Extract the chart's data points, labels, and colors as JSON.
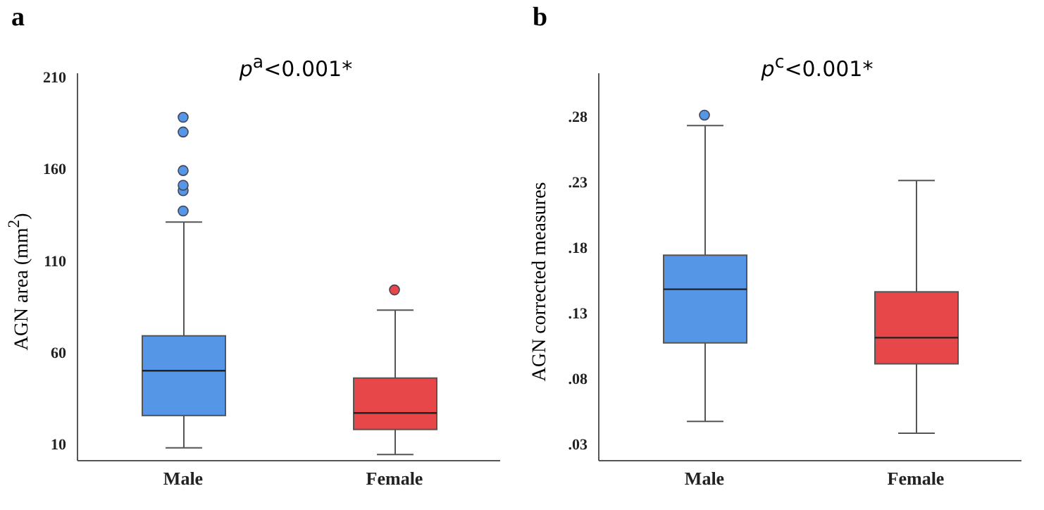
{
  "chart_data": [
    {
      "type": "box",
      "title": "p$^{a}$<0.001*",
      "ylabel": "AGN area (mm$^{2}$)",
      "annotations": [
        "a"
      ],
      "categories": [
        "Male",
        "Female"
      ],
      "colors": [
        "#5596e6",
        "#e8474a"
      ],
      "marker": "circle",
      "ylim": [
        1,
        212
      ],
      "yticks": [
        10,
        60,
        110,
        160,
        210
      ],
      "grid": false,
      "legend": false,
      "boxes": [
        {
          "low": 8,
          "q1": 25.6,
          "median": 50,
          "q3": 69,
          "high": 131,
          "outliers": [
            137,
            148,
            151,
            159,
            180,
            188
          ]
        },
        {
          "low": 4.4,
          "q1": 18,
          "median": 27,
          "q3": 46,
          "high": 83,
          "outliers": [
            94
          ]
        }
      ]
    },
    {
      "type": "box",
      "title": "p$^{c}$<0.001*",
      "ylabel": "AGN corrected measures",
      "annotations": [
        "b"
      ],
      "categories": [
        "Male",
        "Female"
      ],
      "colors": [
        "#5596e6",
        "#e8474a"
      ],
      "marker": "circle",
      "ylim": [
        0.017,
        0.313
      ],
      "yticks": [
        {
          "value": 0.03,
          "label": ".03"
        },
        {
          "value": 0.08,
          "label": ".08"
        },
        {
          "value": 0.13,
          "label": ".13"
        },
        {
          "value": 0.18,
          "label": ".18"
        },
        {
          "value": 0.23,
          "label": ".23"
        },
        {
          "value": 0.28,
          "label": ".28"
        }
      ],
      "grid": false,
      "legend": false,
      "boxes": [
        {
          "low": 0.047,
          "q1": 0.107,
          "median": 0.148,
          "q3": 0.174,
          "high": 0.273,
          "outliers": [
            0.281
          ]
        },
        {
          "low": 0.038,
          "q1": 0.091,
          "median": 0.111,
          "q3": 0.146,
          "high": 0.231
        }
      ]
    }
  ]
}
